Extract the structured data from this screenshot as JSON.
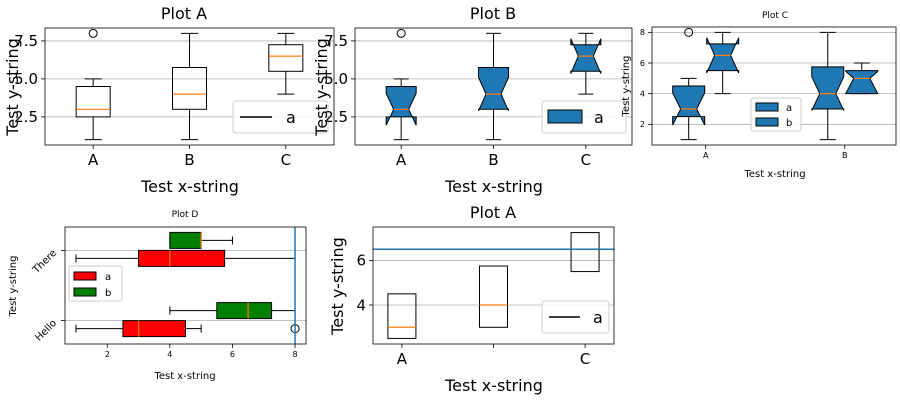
{
  "chart_data": [
    {
      "type": "box",
      "title": "Plot A",
      "xlabel": "Test x-string",
      "ylabel": "Test y-string",
      "categories": [
        "A",
        "B",
        "C"
      ],
      "yticks": [
        "2.5",
        "5.0",
        "7.5"
      ],
      "ytick_values": [
        2.5,
        5.0,
        7.5
      ],
      "ylim": [
        0.65,
        8.35
      ],
      "grid": "y",
      "legend": {
        "position": "lower-right",
        "entries": [
          "a"
        ]
      },
      "boxes": [
        {
          "category": "A",
          "whislo": 1.0,
          "q1": 2.5,
          "med": 3.0,
          "q3": 4.5,
          "whishi": 5.0,
          "fliers": [
            8.0
          ]
        },
        {
          "category": "B",
          "whislo": 1.0,
          "q1": 3.0,
          "med": 4.0,
          "q3": 5.75,
          "whishi": 8.0,
          "fliers": []
        },
        {
          "category": "C",
          "whislo": 4.0,
          "q1": 5.5,
          "med": 6.5,
          "q3": 7.25,
          "whishi": 8.0,
          "fliers": []
        }
      ]
    },
    {
      "type": "box",
      "title": "Plot B",
      "xlabel": "Test x-string",
      "ylabel": "Test y-string",
      "categories": [
        "A",
        "B",
        "C"
      ],
      "yticks": [
        "2.5",
        "5.0",
        "7.5"
      ],
      "ytick_values": [
        2.5,
        5.0,
        7.5
      ],
      "ylim": [
        0.65,
        8.35
      ],
      "grid": "y",
      "notched": true,
      "legend": {
        "position": "lower-right",
        "entries": [
          "a"
        ]
      },
      "boxes": [
        {
          "category": "A",
          "whislo": 1.0,
          "q1": 2.5,
          "med": 3.0,
          "q3": 4.5,
          "whishi": 5.0,
          "notchlo": 1.95,
          "notchhi": 4.05,
          "fliers": [
            8.0
          ]
        },
        {
          "category": "B",
          "whislo": 1.0,
          "q1": 3.0,
          "med": 4.0,
          "q3": 5.75,
          "whishi": 8.0,
          "notchlo": 2.9,
          "notchhi": 5.1,
          "fliers": []
        },
        {
          "category": "C",
          "whislo": 4.0,
          "q1": 5.5,
          "med": 6.5,
          "q3": 7.25,
          "whishi": 8.0,
          "notchlo": 5.35,
          "notchhi": 7.65,
          "fliers": []
        }
      ]
    },
    {
      "type": "box",
      "title": "Plot C",
      "xlabel": "Test x-string",
      "ylabel": "Test y-string",
      "categories": [
        "A",
        "B"
      ],
      "yticks": [
        "2",
        "4",
        "6",
        "8"
      ],
      "ytick_values": [
        2,
        4,
        6,
        8
      ],
      "ylim": [
        0.65,
        8.35
      ],
      "grid": "y",
      "notched": true,
      "legend": {
        "position": "lower-center",
        "entries": [
          "a",
          "b"
        ]
      },
      "series": [
        {
          "name": "a",
          "boxes": [
            {
              "category": "A",
              "whislo": 1.0,
              "q1": 2.5,
              "med": 3.0,
              "q3": 4.5,
              "whishi": 5.0,
              "notchlo": 1.95,
              "notchhi": 4.05,
              "fliers": [
                8.0
              ]
            },
            {
              "category": "B",
              "whislo": 1.0,
              "q1": 3.0,
              "med": 4.0,
              "q3": 5.75,
              "whishi": 8.0,
              "notchlo": 2.9,
              "notchhi": 5.1,
              "fliers": []
            }
          ]
        },
        {
          "name": "b",
          "boxes": [
            {
              "category": "A",
              "whislo": 4.0,
              "q1": 5.5,
              "med": 6.5,
              "q3": 7.25,
              "whishi": 8.0,
              "notchlo": 5.35,
              "notchhi": 7.65,
              "fliers": []
            },
            {
              "category": "B",
              "whislo": 4.0,
              "q1": 4.0,
              "med": 5.0,
              "q3": 5.5,
              "whishi": 6.0,
              "notchlo": 4.0,
              "notchhi": 5.45,
              "fliers": []
            }
          ]
        }
      ]
    },
    {
      "type": "box",
      "orientation": "horizontal",
      "title": "Plot D",
      "xlabel": "Test x-string",
      "ylabel": "Test y-string",
      "categories": [
        "Hello",
        "There"
      ],
      "xticks": [
        "2",
        "4",
        "6",
        "8"
      ],
      "xtick_values": [
        2,
        4,
        6,
        8
      ],
      "xlim": [
        0.65,
        8.35
      ],
      "grid": "y",
      "vline": 8.0,
      "legend": {
        "position": "center-left",
        "entries": [
          "a",
          "b"
        ]
      },
      "series": [
        {
          "name": "a",
          "color": "#ff0000",
          "boxes": [
            {
              "category": "Hello",
              "whislo": 1.0,
              "q1": 2.5,
              "med": 3.0,
              "q3": 4.5,
              "whishi": 5.0,
              "fliers": [
                8.0
              ]
            },
            {
              "category": "There",
              "whislo": 1.0,
              "q1": 3.0,
              "med": 4.0,
              "q3": 5.75,
              "whishi": 8.0,
              "fliers": []
            }
          ]
        },
        {
          "name": "b",
          "color": "#008000",
          "boxes": [
            {
              "category": "Hello",
              "whislo": 4.0,
              "q1": 5.5,
              "med": 6.5,
              "q3": 7.25,
              "whishi": 8.0,
              "fliers": []
            },
            {
              "category": "There",
              "whislo": 4.0,
              "q1": 4.0,
              "med": 5.0,
              "q3": 5.0,
              "whishi": 6.0,
              "fliers": []
            }
          ]
        }
      ]
    },
    {
      "type": "box",
      "title": "Plot A",
      "xlabel": "Test x-string",
      "ylabel": "Test y-string",
      "categories": [
        "A",
        "",
        "C"
      ],
      "yticks": [
        "4",
        "6"
      ],
      "ytick_values": [
        4,
        6
      ],
      "ylim": [
        2.25,
        7.5
      ],
      "grid": "y",
      "hline": 6.5,
      "show_whiskers": false,
      "legend": {
        "position": "lower-right",
        "entries": [
          "a"
        ]
      },
      "boxes": [
        {
          "category": "A",
          "q1": 2.5,
          "med": 3.0,
          "q3": 4.5
        },
        {
          "category": "",
          "q1": 3.0,
          "med": 4.0,
          "q3": 5.75
        },
        {
          "category": "C",
          "q1": 5.5,
          "med": 6.5,
          "q3": 7.25
        }
      ]
    }
  ]
}
